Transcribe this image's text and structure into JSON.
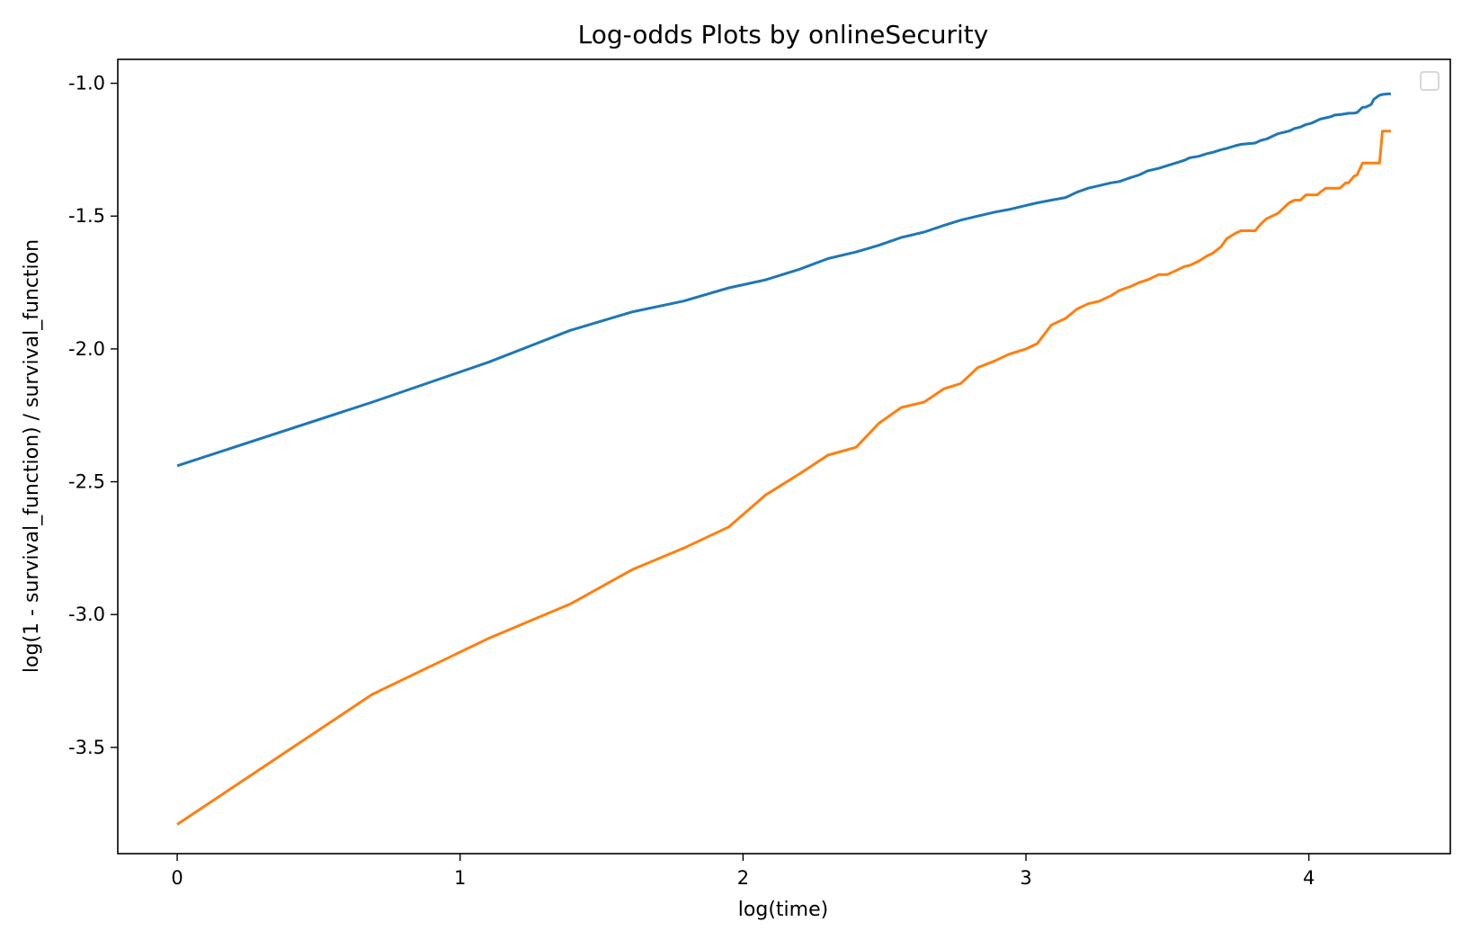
{
  "chart_data": {
    "type": "line",
    "title": "Log-odds Plots by onlineSecurity",
    "xlabel": "log(time)",
    "ylabel": "log(1 - survival_function) / survival_function",
    "xlim": [
      -0.21,
      4.5
    ],
    "ylim": [
      -3.9,
      -0.91
    ],
    "xticks": [
      0,
      1,
      2,
      3,
      4
    ],
    "xtick_labels": [
      "0",
      "1",
      "2",
      "3",
      "4"
    ],
    "yticks": [
      -1.0,
      -1.5,
      -2.0,
      -2.5,
      -3.0,
      -3.5
    ],
    "ytick_labels": [
      "-1.0",
      "-1.5",
      "-2.0",
      "-2.5",
      "-3.0",
      "-3.5"
    ],
    "grid": false,
    "legend": {
      "placement": "top-right",
      "entries": []
    },
    "series": [
      {
        "color": "#1f77b4",
        "points": [
          [
            0,
            -2.44
          ],
          [
            0.69,
            -2.2
          ],
          [
            1.1,
            -2.05
          ],
          [
            1.39,
            -1.93
          ],
          [
            1.61,
            -1.86
          ],
          [
            1.79,
            -1.82
          ],
          [
            1.95,
            -1.77
          ],
          [
            2.08,
            -1.74
          ],
          [
            2.2,
            -1.7
          ],
          [
            2.3,
            -1.66
          ],
          [
            2.4,
            -1.635
          ],
          [
            2.48,
            -1.61
          ],
          [
            2.56,
            -1.58
          ],
          [
            2.64,
            -1.56
          ],
          [
            2.71,
            -1.535
          ],
          [
            2.77,
            -1.515
          ],
          [
            2.83,
            -1.5
          ],
          [
            2.89,
            -1.485
          ],
          [
            2.94,
            -1.475
          ],
          [
            3.0,
            -1.46
          ],
          [
            3.04,
            -1.45
          ],
          [
            3.09,
            -1.44
          ],
          [
            3.14,
            -1.43
          ],
          [
            3.18,
            -1.41
          ],
          [
            3.22,
            -1.395
          ],
          [
            3.26,
            -1.385
          ],
          [
            3.3,
            -1.375
          ],
          [
            3.33,
            -1.37
          ],
          [
            3.37,
            -1.355
          ],
          [
            3.4,
            -1.345
          ],
          [
            3.43,
            -1.33
          ],
          [
            3.47,
            -1.32
          ],
          [
            3.5,
            -1.31
          ],
          [
            3.53,
            -1.3
          ],
          [
            3.56,
            -1.29
          ],
          [
            3.58,
            -1.28
          ],
          [
            3.61,
            -1.275
          ],
          [
            3.64,
            -1.265
          ],
          [
            3.66,
            -1.26
          ],
          [
            3.69,
            -1.25
          ],
          [
            3.71,
            -1.245
          ],
          [
            3.74,
            -1.235
          ],
          [
            3.76,
            -1.23
          ],
          [
            3.78,
            -1.228
          ],
          [
            3.81,
            -1.225
          ],
          [
            3.83,
            -1.215
          ],
          [
            3.85,
            -1.21
          ],
          [
            3.87,
            -1.2
          ],
          [
            3.89,
            -1.19
          ],
          [
            3.91,
            -1.185
          ],
          [
            3.93,
            -1.18
          ],
          [
            3.95,
            -1.17
          ],
          [
            3.97,
            -1.165
          ],
          [
            3.99,
            -1.155
          ],
          [
            4.01,
            -1.15
          ],
          [
            4.03,
            -1.14
          ],
          [
            4.04,
            -1.135
          ],
          [
            4.06,
            -1.13
          ],
          [
            4.08,
            -1.125
          ],
          [
            4.09,
            -1.12
          ],
          [
            4.11,
            -1.118
          ],
          [
            4.13,
            -1.115
          ],
          [
            4.14,
            -1.113
          ],
          [
            4.16,
            -1.112
          ],
          [
            4.17,
            -1.11
          ],
          [
            4.19,
            -1.09
          ],
          [
            4.2,
            -1.09
          ],
          [
            4.22,
            -1.08
          ],
          [
            4.23,
            -1.06
          ],
          [
            4.25,
            -1.045
          ],
          [
            4.26,
            -1.042
          ],
          [
            4.28,
            -1.04
          ],
          [
            4.29,
            -1.04
          ]
        ]
      },
      {
        "color": "#ff7f0e",
        "points": [
          [
            0,
            -3.79
          ],
          [
            0.69,
            -3.3
          ],
          [
            1.1,
            -3.09
          ],
          [
            1.39,
            -2.96
          ],
          [
            1.61,
            -2.83
          ],
          [
            1.79,
            -2.75
          ],
          [
            1.95,
            -2.67
          ],
          [
            2.08,
            -2.55
          ],
          [
            2.2,
            -2.47
          ],
          [
            2.3,
            -2.4
          ],
          [
            2.4,
            -2.37
          ],
          [
            2.48,
            -2.28
          ],
          [
            2.56,
            -2.22
          ],
          [
            2.64,
            -2.2
          ],
          [
            2.71,
            -2.15
          ],
          [
            2.77,
            -2.13
          ],
          [
            2.83,
            -2.07
          ],
          [
            2.89,
            -2.045
          ],
          [
            2.94,
            -2.02
          ],
          [
            3.0,
            -2.0
          ],
          [
            3.04,
            -1.98
          ],
          [
            3.09,
            -1.91
          ],
          [
            3.14,
            -1.885
          ],
          [
            3.18,
            -1.85
          ],
          [
            3.22,
            -1.83
          ],
          [
            3.26,
            -1.82
          ],
          [
            3.3,
            -1.8
          ],
          [
            3.33,
            -1.78
          ],
          [
            3.37,
            -1.765
          ],
          [
            3.4,
            -1.75
          ],
          [
            3.43,
            -1.74
          ],
          [
            3.47,
            -1.72
          ],
          [
            3.5,
            -1.72
          ],
          [
            3.53,
            -1.705
          ],
          [
            3.56,
            -1.69
          ],
          [
            3.58,
            -1.685
          ],
          [
            3.61,
            -1.67
          ],
          [
            3.64,
            -1.65
          ],
          [
            3.66,
            -1.64
          ],
          [
            3.69,
            -1.615
          ],
          [
            3.71,
            -1.585
          ],
          [
            3.74,
            -1.565
          ],
          [
            3.76,
            -1.555
          ],
          [
            3.78,
            -1.555
          ],
          [
            3.81,
            -1.555
          ],
          [
            3.83,
            -1.53
          ],
          [
            3.85,
            -1.51
          ],
          [
            3.87,
            -1.5
          ],
          [
            3.89,
            -1.49
          ],
          [
            3.91,
            -1.47
          ],
          [
            3.93,
            -1.45
          ],
          [
            3.95,
            -1.44
          ],
          [
            3.97,
            -1.44
          ],
          [
            3.99,
            -1.42
          ],
          [
            4.01,
            -1.42
          ],
          [
            4.03,
            -1.42
          ],
          [
            4.04,
            -1.41
          ],
          [
            4.06,
            -1.395
          ],
          [
            4.08,
            -1.395
          ],
          [
            4.09,
            -1.395
          ],
          [
            4.11,
            -1.395
          ],
          [
            4.13,
            -1.375
          ],
          [
            4.14,
            -1.375
          ],
          [
            4.16,
            -1.35
          ],
          [
            4.17,
            -1.345
          ],
          [
            4.19,
            -1.3
          ],
          [
            4.2,
            -1.3
          ],
          [
            4.22,
            -1.3
          ],
          [
            4.23,
            -1.3
          ],
          [
            4.25,
            -1.3
          ],
          [
            4.26,
            -1.18
          ],
          [
            4.28,
            -1.18
          ],
          [
            4.29,
            -1.18
          ]
        ]
      }
    ]
  }
}
